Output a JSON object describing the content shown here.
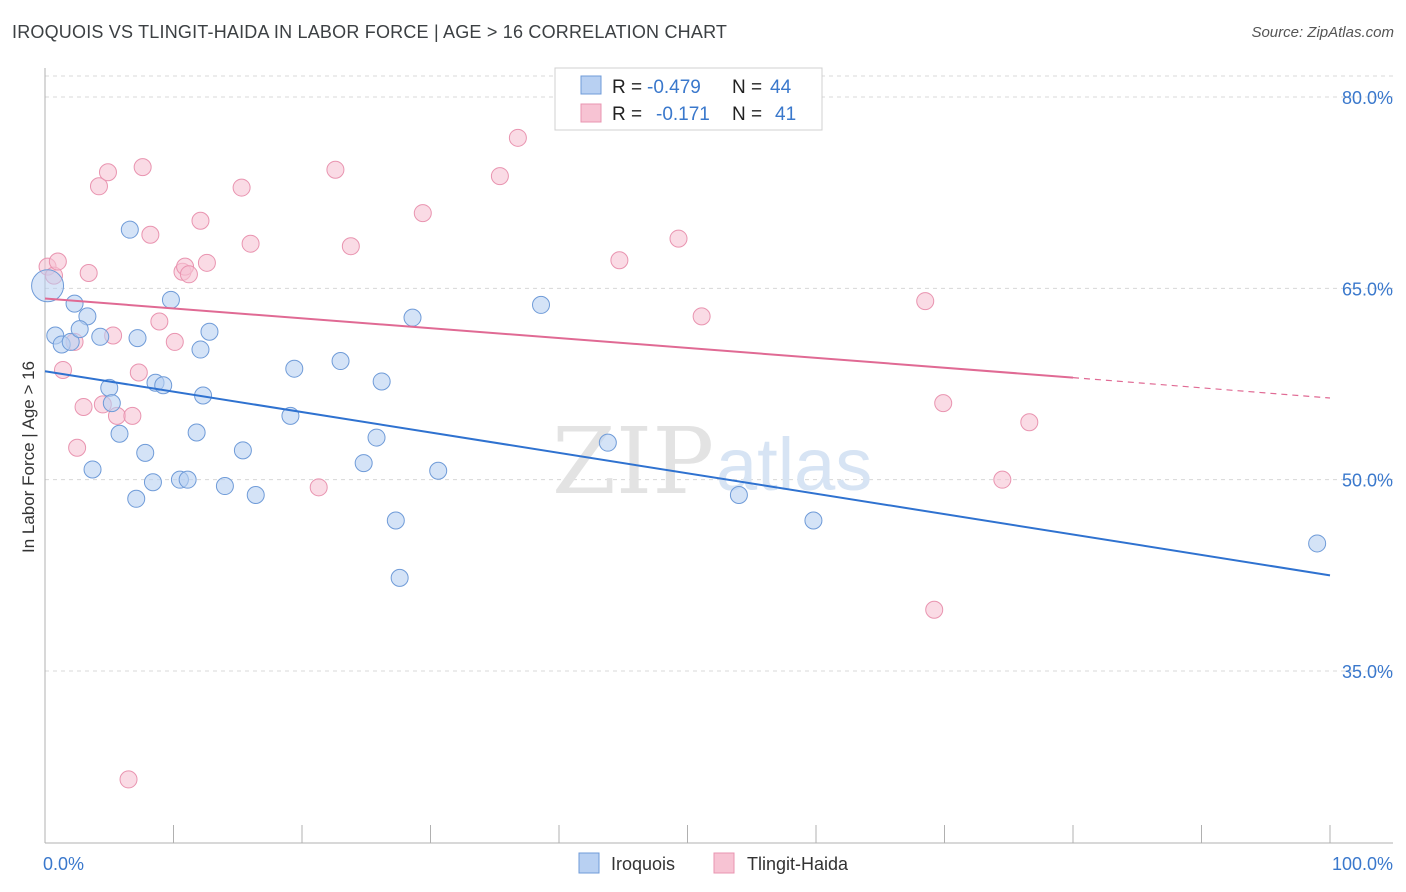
{
  "title": "IROQUOIS VS TLINGIT-HAIDA IN LABOR FORCE | AGE > 16 CORRELATION CHART",
  "source": "Source: ZipAtlas.com",
  "watermark": {
    "zip": "ZIP",
    "atlas": "atlas"
  },
  "colors": {
    "iroquois_fill": "#b8d0f2",
    "iroquois_stroke": "#6f9bd8",
    "iroquois_line": "#2f72d0",
    "tlingit_fill": "#f7c3d3",
    "tlingit_stroke": "#e994b0",
    "tlingit_line": "#e06a94",
    "axis_label": "#3a78cc",
    "grid": "#d8d8d8"
  },
  "legend": {
    "items": [
      {
        "r_label": "R =",
        "r_value": "-0.479",
        "n_label": "N =",
        "n_value": "44"
      },
      {
        "r_label": "R =",
        "r_value": "-0.171",
        "n_label": "N =",
        "n_value": "41"
      }
    ]
  },
  "bottom_legend": [
    "Iroquois",
    "Tlingit-Haida"
  ],
  "chart_data": {
    "type": "scatter",
    "xlabel": "",
    "ylabel": "In Labor Force | Age > 16",
    "xlim": [
      0,
      100
    ],
    "ylim": [
      22,
      80
    ],
    "x_tick_labels": [
      "0.0%",
      "100.0%"
    ],
    "y_ticks": [
      35,
      50,
      65,
      80
    ],
    "y_tick_labels": [
      "35.0%",
      "50.0%",
      "65.0%",
      "80.0%"
    ],
    "grid": true,
    "legend_position": "top-center",
    "series": [
      {
        "name": "Iroquois",
        "r": -0.479,
        "n": 44,
        "trend": {
          "x0": 0,
          "y0": 58.5,
          "x1": 100,
          "y1": 42.5
        },
        "points": [
          [
            0.2,
            65.2
          ],
          [
            0.8,
            61.3
          ],
          [
            1.3,
            60.6
          ],
          [
            2.0,
            60.8
          ],
          [
            2.3,
            63.8
          ],
          [
            3.3,
            62.8
          ],
          [
            2.7,
            61.8
          ],
          [
            4.3,
            61.2
          ],
          [
            3.7,
            50.8
          ],
          [
            5.0,
            57.2
          ],
          [
            5.2,
            56.0
          ],
          [
            5.8,
            53.6
          ],
          [
            6.6,
            69.6
          ],
          [
            7.1,
            48.5
          ],
          [
            7.2,
            61.1
          ],
          [
            7.8,
            52.1
          ],
          [
            8.4,
            49.8
          ],
          [
            8.6,
            57.6
          ],
          [
            9.2,
            57.4
          ],
          [
            9.8,
            64.1
          ],
          [
            10.5,
            50.0
          ],
          [
            11.1,
            50.0
          ],
          [
            11.8,
            53.7
          ],
          [
            12.1,
            60.2
          ],
          [
            12.3,
            56.6
          ],
          [
            12.8,
            61.6
          ],
          [
            14.0,
            49.5
          ],
          [
            15.4,
            52.3
          ],
          [
            16.4,
            48.8
          ],
          [
            19.1,
            55.0
          ],
          [
            19.4,
            58.7
          ],
          [
            23.0,
            59.3
          ],
          [
            24.8,
            51.3
          ],
          [
            25.8,
            53.3
          ],
          [
            26.2,
            57.7
          ],
          [
            27.3,
            46.8
          ],
          [
            27.6,
            42.3
          ],
          [
            28.6,
            62.7
          ],
          [
            30.6,
            50.7
          ],
          [
            38.6,
            63.7
          ],
          [
            43.8,
            52.9
          ],
          [
            54.0,
            48.8
          ],
          [
            59.8,
            46.8
          ],
          [
            99.0,
            45.0
          ]
        ]
      },
      {
        "name": "Tlingit-Haida",
        "r": -0.171,
        "n": 41,
        "trend": {
          "x0": 0,
          "y0": 64.2,
          "x1": 80,
          "y1": 58.0,
          "dash_to_x": 100,
          "dash_to_y": 56.4
        },
        "points": [
          [
            0.2,
            66.7
          ],
          [
            0.7,
            66.0
          ],
          [
            1.0,
            67.1
          ],
          [
            1.4,
            58.6
          ],
          [
            2.3,
            60.8
          ],
          [
            2.5,
            52.5
          ],
          [
            3.0,
            55.7
          ],
          [
            3.4,
            66.2
          ],
          [
            4.2,
            73.0
          ],
          [
            4.5,
            55.9
          ],
          [
            4.9,
            74.1
          ],
          [
            5.3,
            61.3
          ],
          [
            5.6,
            55.0
          ],
          [
            6.5,
            26.5
          ],
          [
            6.8,
            55.0
          ],
          [
            7.3,
            58.4
          ],
          [
            7.6,
            74.5
          ],
          [
            8.2,
            69.2
          ],
          [
            8.9,
            62.4
          ],
          [
            10.1,
            60.8
          ],
          [
            10.7,
            66.3
          ],
          [
            10.9,
            66.7
          ],
          [
            11.2,
            66.1
          ],
          [
            12.1,
            70.3
          ],
          [
            12.6,
            67.0
          ],
          [
            15.3,
            72.9
          ],
          [
            16.0,
            68.5
          ],
          [
            21.3,
            49.4
          ],
          [
            22.6,
            74.3
          ],
          [
            23.8,
            68.3
          ],
          [
            29.4,
            70.9
          ],
          [
            35.4,
            73.8
          ],
          [
            36.8,
            76.8
          ],
          [
            44.7,
            67.2
          ],
          [
            49.3,
            68.9
          ],
          [
            51.1,
            62.8
          ],
          [
            69.2,
            39.8
          ],
          [
            69.9,
            56.0
          ],
          [
            74.5,
            50.0
          ],
          [
            76.6,
            54.5
          ],
          [
            68.5,
            64.0
          ]
        ]
      }
    ]
  }
}
